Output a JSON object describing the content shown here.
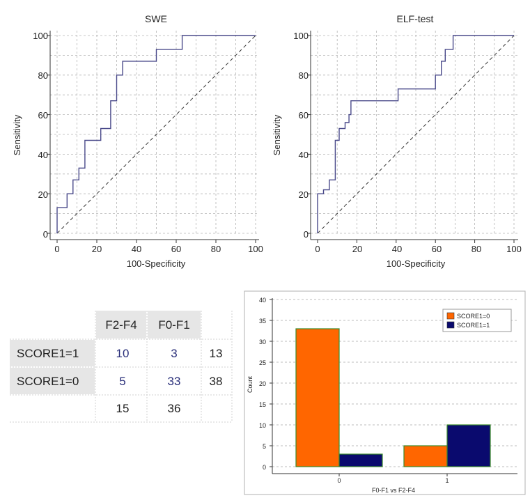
{
  "roc_swe": {
    "title": "SWE",
    "xlabel": "100-Specificity",
    "ylabel": "Sensitivity",
    "xticks": [
      "0",
      "20",
      "40",
      "60",
      "80",
      "100"
    ],
    "yticks": [
      "0",
      "20",
      "40",
      "60",
      "80",
      "100"
    ]
  },
  "roc_elf": {
    "title": "ELF-test",
    "xlabel": "100-Specificity",
    "ylabel": "Sensitivity",
    "xticks": [
      "0",
      "20",
      "40",
      "60",
      "80",
      "100"
    ],
    "yticks": [
      "0",
      "20",
      "40",
      "60",
      "80",
      "100"
    ]
  },
  "table": {
    "col_headers": [
      "F2-F4",
      "F0-F1"
    ],
    "rows": [
      {
        "label": "SCORE1=1",
        "a": "10",
        "b": "3",
        "total": "13"
      },
      {
        "label": "SCORE1=0",
        "a": "5",
        "b": "33",
        "total": "38"
      }
    ],
    "col_totals": [
      "15",
      "36"
    ]
  },
  "bar": {
    "ylabel": "Count",
    "xlabel": "F0-F1 vs F2-F4",
    "yticks": [
      "0",
      "5",
      "10",
      "15",
      "20",
      "25",
      "30",
      "35",
      "40"
    ],
    "xticks": [
      "0",
      "1"
    ],
    "legend": [
      "SCORE1=0",
      "SCORE1=1"
    ]
  },
  "colors": {
    "roc_line": "#4a4a8a",
    "bar_orange": "#ff6600",
    "bar_navy": "#0a0a6e",
    "bar_edge": "#3a8a2a",
    "table_header_bg": "#e6e6e6",
    "table_value_blue": "#2a2f7a"
  },
  "chart_data": [
    {
      "type": "line",
      "title": "SWE",
      "xlabel": "100-Specificity",
      "ylabel": "Sensitivity",
      "xlim": [
        0,
        100
      ],
      "ylim": [
        0,
        100
      ],
      "grid": true,
      "series": [
        {
          "x": [
            0,
            0,
            5,
            5,
            8,
            8,
            11,
            11,
            14,
            14,
            22,
            22,
            27,
            27,
            30,
            30,
            33,
            33,
            36,
            36,
            50,
            50,
            63,
            63,
            100
          ],
          "y": [
            0,
            13,
            13,
            20,
            20,
            27,
            27,
            33,
            33,
            47,
            47,
            53,
            53,
            67,
            67,
            80,
            80,
            87,
            87,
            87,
            87,
            93,
            93,
            100,
            100
          ]
        }
      ],
      "reference_diagonal": true
    },
    {
      "type": "line",
      "title": "ELF-test",
      "xlabel": "100-Specificity",
      "ylabel": "Sensitivity",
      "xlim": [
        0,
        100
      ],
      "ylim": [
        0,
        100
      ],
      "grid": true,
      "series": [
        {
          "x": [
            0,
            0,
            3,
            3,
            6,
            6,
            9,
            9,
            11,
            11,
            14,
            14,
            16,
            16,
            17,
            17,
            41,
            41,
            60,
            60,
            63,
            63,
            65,
            65,
            67,
            67,
            69,
            69,
            100
          ],
          "y": [
            0,
            20,
            20,
            22,
            22,
            27,
            27,
            47,
            47,
            53,
            53,
            56,
            56,
            60,
            60,
            67,
            67,
            73,
            73,
            80,
            80,
            87,
            87,
            93,
            93,
            93,
            93,
            100,
            100
          ]
        }
      ],
      "reference_diagonal": true
    },
    {
      "type": "bar",
      "xlabel": "F0-F1 vs F2-F4",
      "ylabel": "Count",
      "ylim": [
        0,
        40
      ],
      "categories": [
        "0",
        "1"
      ],
      "series": [
        {
          "name": "SCORE1=0",
          "values": [
            33,
            5
          ]
        },
        {
          "name": "SCORE1=1",
          "values": [
            3,
            10
          ]
        }
      ],
      "legend": "top-right",
      "grid": true
    }
  ]
}
